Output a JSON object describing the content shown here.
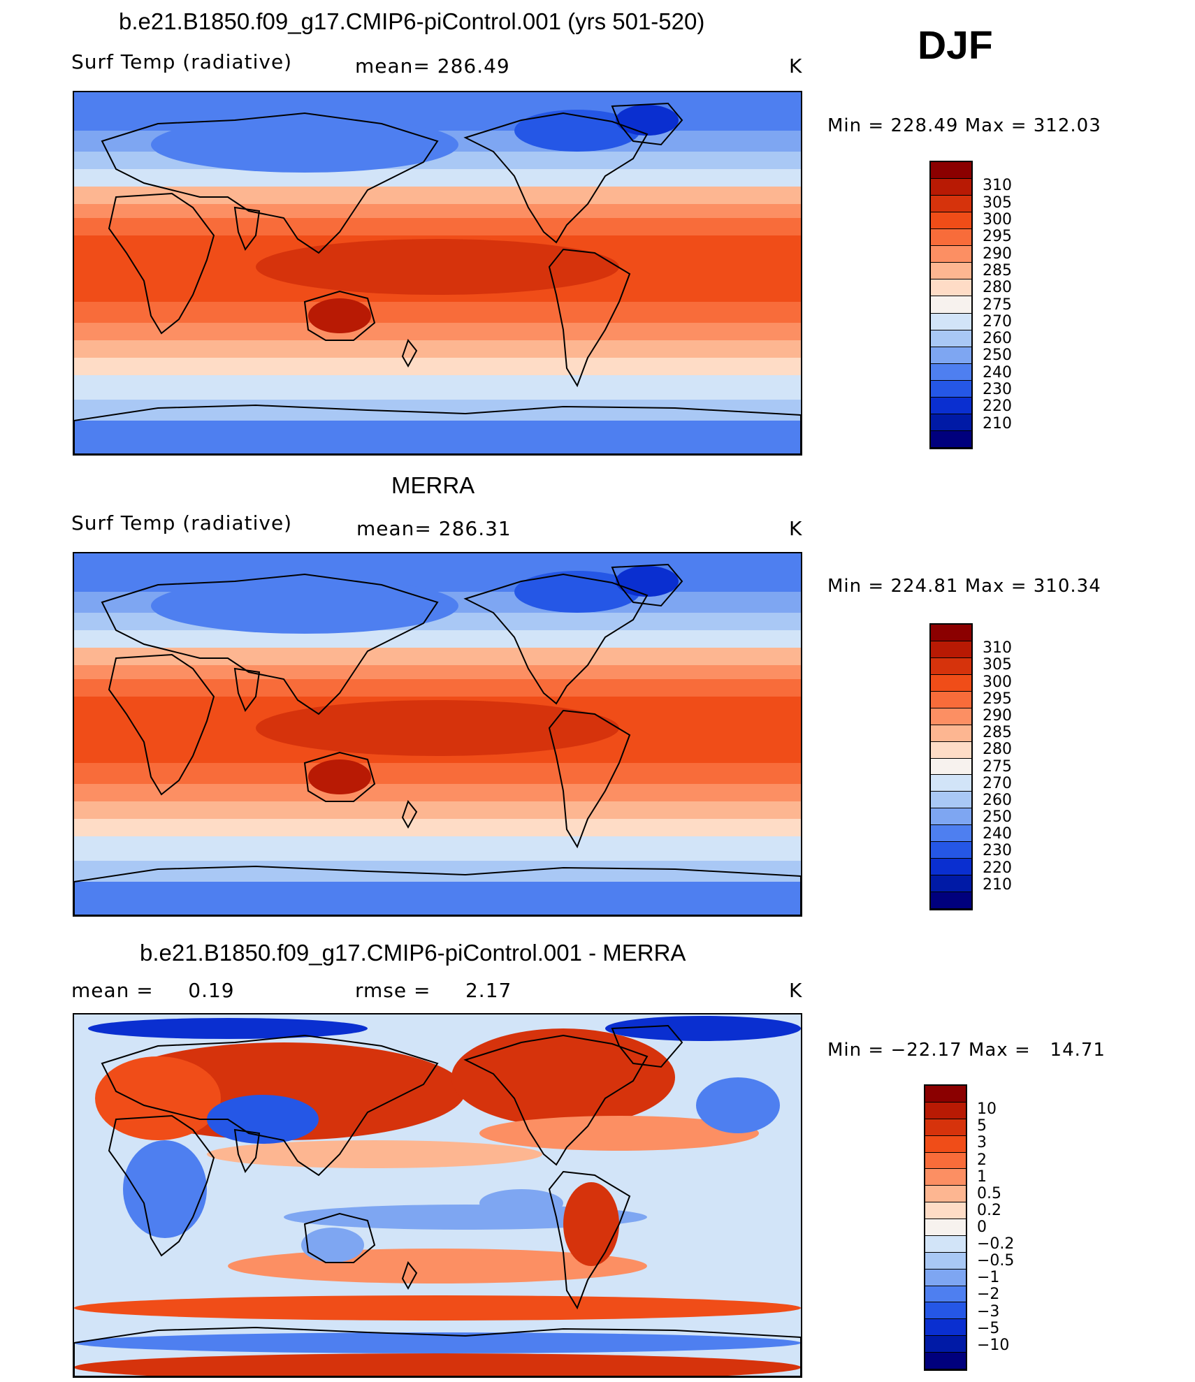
{
  "season": "DJF",
  "panels": [
    {
      "title": "b.e21.B1850.f09_g17.CMIP6-piControl.001 (yrs 501-520)",
      "left_label": "Surf Temp (radiative)",
      "center_label": "mean= 286.49",
      "units": "K",
      "minmax": "Min = 228.49 Max = 312.03",
      "map_kind": "abs"
    },
    {
      "title": "MERRA",
      "left_label": "Surf Temp (radiative)",
      "center_label": "mean= 286.31",
      "units": "K",
      "minmax": "Min = 224.81 Max = 310.34",
      "map_kind": "abs"
    },
    {
      "title": "b.e21.B1850.f09_g17.CMIP6-piControl.001 - MERRA",
      "left_label": "mean =     0.19",
      "center_label": "rmse =     2.17",
      "units": "K",
      "minmax": "Min = −22.17 Max =   14.71",
      "map_kind": "diff"
    }
  ],
  "colorbars": {
    "abs": {
      "labels": [
        "310",
        "305",
        "300",
        "295",
        "290",
        "285",
        "280",
        "275",
        "270",
        "260",
        "250",
        "240",
        "230",
        "220",
        "210"
      ],
      "colors": [
        "#8b0000",
        "#b81a04",
        "#d6330c",
        "#f04d18",
        "#f86c3a",
        "#fc8f63",
        "#fdb691",
        "#fedcc6",
        "#f7f2ee",
        "#d2e4f8",
        "#a9c8f5",
        "#7ea6f2",
        "#4e7ff0",
        "#2557e6",
        "#0a2fd0",
        "#001aa6",
        "#00007d"
      ]
    },
    "diff": {
      "labels": [
        "10",
        "5",
        "3",
        "2",
        "1",
        "0.5",
        "0.2",
        "0",
        "−0.2",
        "−0.5",
        "−1",
        "−2",
        "−3",
        "−5",
        "−10"
      ],
      "colors": [
        "#8b0000",
        "#b81a04",
        "#d6330c",
        "#f04d18",
        "#f86c3a",
        "#fc8f63",
        "#fdb691",
        "#fedcc6",
        "#f7f2ee",
        "#d2e4f8",
        "#a9c8f5",
        "#7ea6f2",
        "#4e7ff0",
        "#2557e6",
        "#0a2fd0",
        "#001aa6",
        "#00007d"
      ]
    }
  }
}
